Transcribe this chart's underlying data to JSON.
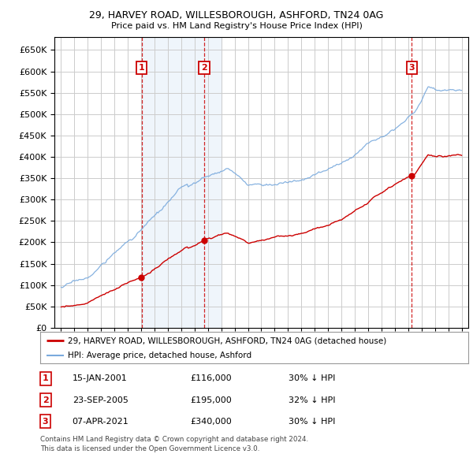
{
  "title1": "29, HARVEY ROAD, WILLESBOROUGH, ASHFORD, TN24 0AG",
  "title2": "Price paid vs. HM Land Registry's House Price Index (HPI)",
  "legend_label_red": "29, HARVEY ROAD, WILLESBOROUGH, ASHFORD, TN24 0AG (detached house)",
  "legend_label_blue": "HPI: Average price, detached house, Ashford",
  "transactions": [
    {
      "label": "1",
      "date": "15-JAN-2001",
      "price": 116000,
      "pct": "30% ↓ HPI",
      "x_year": 2001.04
    },
    {
      "label": "2",
      "date": "23-SEP-2005",
      "price": 195000,
      "pct": "32% ↓ HPI",
      "x_year": 2005.72
    },
    {
      "label": "3",
      "date": "07-APR-2021",
      "price": 340000,
      "pct": "30% ↓ HPI",
      "x_year": 2021.27
    }
  ],
  "footer1": "Contains HM Land Registry data © Crown copyright and database right 2024.",
  "footer2": "This data is licensed under the Open Government Licence v3.0.",
  "background_color": "#ffffff",
  "grid_color": "#cccccc",
  "red_color": "#cc0000",
  "blue_color": "#7aaadd",
  "shading_color": "#ddeeff",
  "ylim": [
    0,
    680000
  ],
  "yticks": [
    0,
    50000,
    100000,
    150000,
    200000,
    250000,
    300000,
    350000,
    400000,
    450000,
    500000,
    550000,
    600000,
    650000
  ],
  "xlim_start": 1994.5,
  "xlim_end": 2025.5
}
